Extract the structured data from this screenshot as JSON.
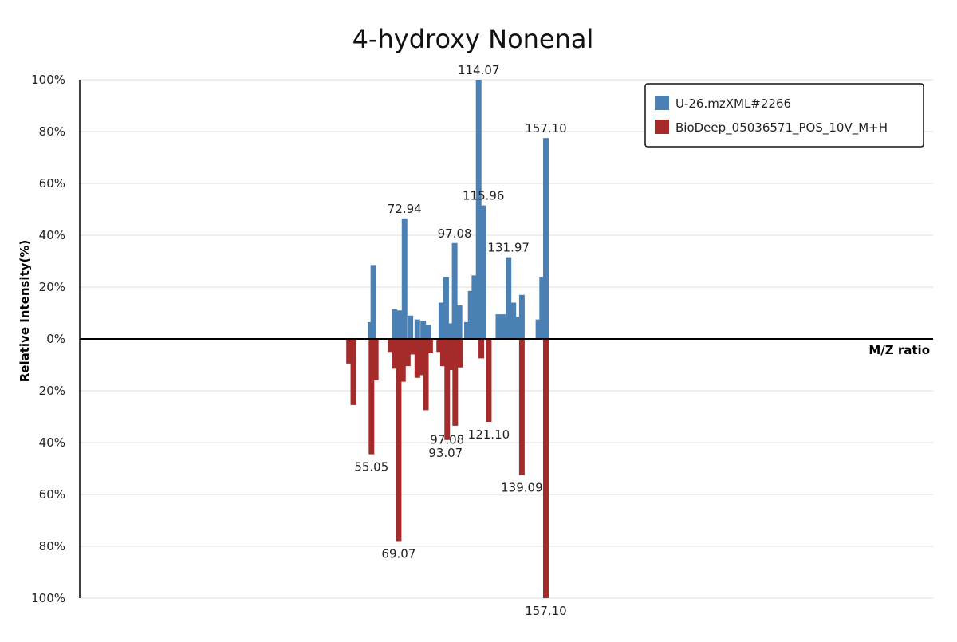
{
  "chart_data": {
    "type": "bar",
    "title": "4-hydroxy Nonenal",
    "xlabel": "M/Z ratio",
    "ylabel": "Relative Intensity(%)",
    "xlim": [
      0,
      160
    ],
    "ylim_top": [
      0,
      100
    ],
    "ylim_bottom": [
      0,
      100
    ],
    "yticks_top": [
      "100%",
      "80%",
      "60%",
      "40%",
      "20%",
      "0%"
    ],
    "yticks_bottom": [
      "20%",
      "40%",
      "60%",
      "80%",
      "100%"
    ],
    "grid": true,
    "legend_position": "top-right",
    "colors": {
      "top": "#4a80b4",
      "bottom": "#a52a2a"
    },
    "series": [
      {
        "name": "U-26.mzXML#2266",
        "direction": "up",
        "peaks": [
          {
            "mz": 54.5,
            "y": 6.5
          },
          {
            "mz": 55.05,
            "y": 28.5
          },
          {
            "mz": 59.0,
            "y": 11.5
          },
          {
            "mz": 60.0,
            "y": 11.0
          },
          {
            "mz": 60.9,
            "y": 46.5
          },
          {
            "mz": 62.0,
            "y": 9.0
          },
          {
            "mz": 63.3,
            "y": 7.5
          },
          {
            "mz": 64.4,
            "y": 7.0
          },
          {
            "mz": 65.4,
            "y": 5.5
          },
          {
            "mz": 67.8,
            "y": 14.0
          },
          {
            "mz": 68.7,
            "y": 24.0
          },
          {
            "mz": 69.6,
            "y": 6.0
          },
          {
            "mz": 70.3,
            "y": 37.0
          },
          {
            "mz": 71.2,
            "y": 13.0
          },
          {
            "mz": 72.6,
            "y": 6.5
          },
          {
            "mz": 73.3,
            "y": 18.5
          },
          {
            "mz": 74.0,
            "y": 24.5
          },
          {
            "mz": 74.8,
            "y": 100.0
          },
          {
            "mz": 75.7,
            "y": 51.5
          },
          {
            "mz": 78.5,
            "y": 9.5
          },
          {
            "mz": 79.5,
            "y": 9.5
          },
          {
            "mz": 80.4,
            "y": 31.5
          },
          {
            "mz": 81.3,
            "y": 14.0
          },
          {
            "mz": 82.2,
            "y": 8.5
          },
          {
            "mz": 82.9,
            "y": 17.0
          },
          {
            "mz": 86.0,
            "y": 7.5
          },
          {
            "mz": 86.7,
            "y": 24.0
          },
          {
            "mz": 87.4,
            "y": 77.5
          }
        ],
        "labels": [
          {
            "text": "72.94",
            "mz": 60.9,
            "y": 46.5
          },
          {
            "text": "97.08",
            "mz": 70.3,
            "y": 37.0
          },
          {
            "text": "114.07",
            "mz": 74.8,
            "y": 100.0
          },
          {
            "text": "115.96",
            "mz": 75.7,
            "y": 51.5
          },
          {
            "text": "131.97",
            "mz": 80.4,
            "y": 31.5
          },
          {
            "text": "157.10",
            "mz": 87.4,
            "y": 77.5
          }
        ]
      },
      {
        "name": "BioDeep_05036571_POS_10V_M+H",
        "direction": "down",
        "peaks": [
          {
            "mz": 50.5,
            "y": 9.5
          },
          {
            "mz": 51.3,
            "y": 25.5
          },
          {
            "mz": 54.7,
            "y": 44.5
          },
          {
            "mz": 55.5,
            "y": 16.0
          },
          {
            "mz": 58.3,
            "y": 5.0
          },
          {
            "mz": 59.0,
            "y": 11.5
          },
          {
            "mz": 59.8,
            "y": 78.0
          },
          {
            "mz": 60.6,
            "y": 16.5
          },
          {
            "mz": 61.5,
            "y": 10.5
          },
          {
            "mz": 62.4,
            "y": 6.0
          },
          {
            "mz": 63.3,
            "y": 15.0
          },
          {
            "mz": 64.1,
            "y": 14.0
          },
          {
            "mz": 64.9,
            "y": 27.5
          },
          {
            "mz": 65.7,
            "y": 5.5
          },
          {
            "mz": 67.4,
            "y": 5.0
          },
          {
            "mz": 68.1,
            "y": 10.5
          },
          {
            "mz": 68.9,
            "y": 39.0
          },
          {
            "mz": 69.7,
            "y": 12.0
          },
          {
            "mz": 70.4,
            "y": 33.5
          },
          {
            "mz": 71.3,
            "y": 11.0
          },
          {
            "mz": 75.3,
            "y": 7.5
          },
          {
            "mz": 76.7,
            "y": 32.0
          },
          {
            "mz": 82.9,
            "y": 52.5
          },
          {
            "mz": 87.4,
            "y": 100.0
          }
        ],
        "labels": [
          {
            "text": "55.05",
            "mz": 54.7,
            "y": 44.5
          },
          {
            "text": "69.07",
            "mz": 59.8,
            "y": 78.0
          },
          {
            "text": "97.08",
            "mz": 68.9,
            "y": 34.0
          },
          {
            "text": "93.07",
            "mz": 68.6,
            "y": 39.0
          },
          {
            "text": "121.10",
            "mz": 76.7,
            "y": 32.0
          },
          {
            "text": "139.09",
            "mz": 82.9,
            "y": 52.5
          },
          {
            "text": "157.10",
            "mz": 87.4,
            "y": 100.0
          }
        ]
      }
    ]
  }
}
